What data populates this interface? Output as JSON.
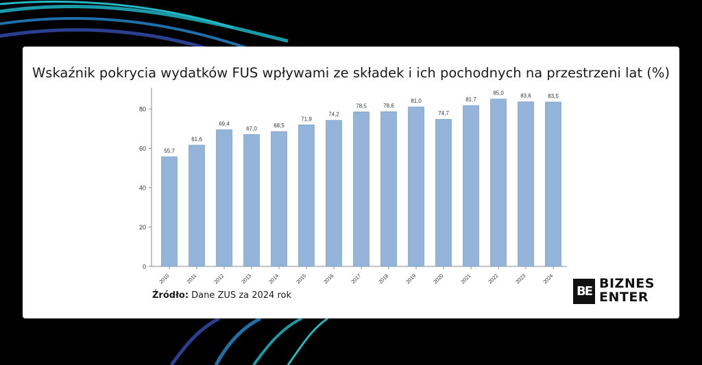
{
  "card": {
    "title": "Wskaźnik pokrycia wydatków FUS wpływami ze składek i ich pochodnych na przestrzeni lat (%)",
    "source_label": "Źródło:",
    "source_text": " Dane ZUS za 2024 rok"
  },
  "logo": {
    "mark": "BE",
    "line1": "BIZNES",
    "line2": "ENTER"
  },
  "colors": {
    "background": "#000000",
    "card": "#ffffff",
    "bar": "#94b4d9",
    "bar_stroke": "#6f95c4",
    "arc_teal": "#1a9aa8",
    "arc_blue": "#2a3f8f"
  },
  "chart_data": {
    "type": "bar",
    "categories": [
      "2010",
      "2011",
      "2012",
      "2013",
      "2014",
      "2015",
      "2016",
      "2017",
      "2018",
      "2019",
      "2020",
      "2021",
      "2022",
      "2023",
      "2024"
    ],
    "values": [
      55.7,
      61.6,
      69.4,
      67.0,
      68.5,
      71.9,
      74.2,
      78.5,
      78.6,
      81.0,
      74.7,
      81.7,
      85.0,
      83.6,
      83.5
    ],
    "value_labels": [
      "55,7",
      "61,6",
      "69,4",
      "67,0",
      "68,5",
      "71,9",
      "74,2",
      "78,5",
      "78,6",
      "81,0",
      "74,7",
      "81,7",
      "85,0",
      "83,6",
      "83,5"
    ],
    "yticks": [
      0,
      20,
      40,
      60,
      80
    ],
    "ylim": [
      0,
      88
    ],
    "title": "Wskaźnik pokrycia wydatków FUS wpływami ze składek i ich pochodnych na przestrzeni lat (%)",
    "xlabel": "",
    "ylabel": "",
    "grid": false,
    "legend": "none"
  }
}
